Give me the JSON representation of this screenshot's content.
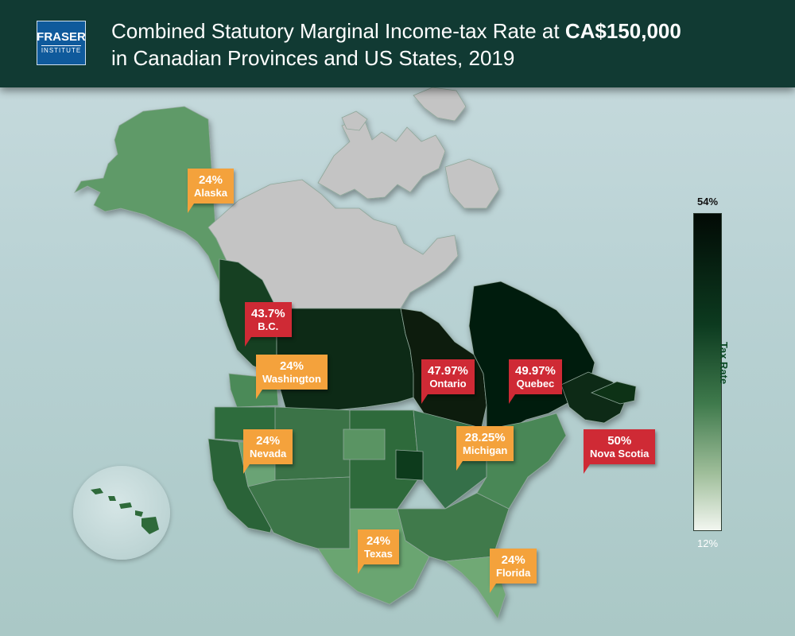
{
  "header": {
    "title_part1": "Combined Statutory Marginal Income-tax Rate at ",
    "title_amount": "CA$150,000",
    "title_part2": "in Canadian Provinces and US States, 2019",
    "logo_main": "FRASER",
    "logo_sub": "INSTITUTE"
  },
  "legend": {
    "label": "Tax Rate",
    "max": "54%",
    "min": "12%",
    "color_max": "#020a05",
    "color_min": "#f2f6f0"
  },
  "callouts": [
    {
      "id": "alaska",
      "rate": "24%",
      "name": "Alaska",
      "kind": "us"
    },
    {
      "id": "bc",
      "rate": "43.7%",
      "name": "B.C.",
      "kind": "ca"
    },
    {
      "id": "washington",
      "rate": "24%",
      "name": "Washington",
      "kind": "us"
    },
    {
      "id": "ontario",
      "rate": "47.97%",
      "name": "Ontario",
      "kind": "ca"
    },
    {
      "id": "quebec",
      "rate": "49.97%",
      "name": "Quebec",
      "kind": "ca"
    },
    {
      "id": "nevada",
      "rate": "24%",
      "name": "Nevada",
      "kind": "us"
    },
    {
      "id": "michigan",
      "rate": "28.25%",
      "name": "Michigan",
      "kind": "us"
    },
    {
      "id": "nova-scotia",
      "rate": "50%",
      "name": "Nova Scotia",
      "kind": "ca"
    },
    {
      "id": "texas",
      "rate": "24%",
      "name": "Texas",
      "kind": "us"
    },
    {
      "id": "florida",
      "rate": "24%",
      "name": "Florida",
      "kind": "us"
    }
  ],
  "colors": {
    "header_bg": "#113a33",
    "us_callout": "#f4a23c",
    "canada_callout": "#cf2a35",
    "no_data_region": "#c4c4c4"
  }
}
